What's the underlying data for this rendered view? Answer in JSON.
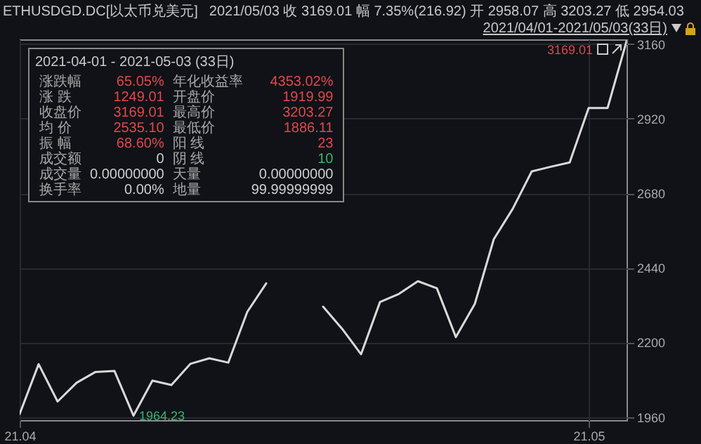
{
  "chart_data": {
    "type": "line",
    "title": "ETHUSDGD.DC[以太币兑美元]",
    "subtitle": "2021/05/03  收 3169.01  幅 7.35%(216.92)  开 2958.07  高 3203.27  低 2954.03",
    "x": [
      "2021-04-01",
      "2021-04-02",
      "2021-04-03",
      "2021-04-04",
      "2021-04-05",
      "2021-04-06",
      "2021-04-07",
      "2021-04-08",
      "2021-04-09",
      "2021-04-10",
      "2021-04-11",
      "2021-04-12",
      "2021-04-13",
      "2021-04-14",
      "2021-04-15",
      "2021-04-16",
      "2021-04-17",
      "2021-04-18",
      "2021-04-19",
      "2021-04-20",
      "2021-04-21",
      "2021-04-22",
      "2021-04-23",
      "2021-04-24",
      "2021-04-25",
      "2021-04-26",
      "2021-04-27",
      "2021-04-28",
      "2021-04-29",
      "2021-04-30",
      "2021-05-01",
      "2021-05-02",
      "2021-05-03"
    ],
    "series": [
      {
        "color": "#d9d9d9",
        "values": [
          1970,
          2130,
          2010,
          2070,
          2105,
          2108,
          1964.23,
          2077,
          2063,
          2131,
          2149,
          2135,
          2298,
          2390,
          null,
          null,
          2315,
          2244,
          2162,
          2330,
          2356,
          2397,
          2374,
          2217,
          2324,
          2532,
          2630,
          2750,
          2765,
          2779,
          2954,
          2954,
          3169.01
        ]
      }
    ],
    "xlim": [
      "2021-04-01",
      "2021-05-03"
    ],
    "xticks": [
      {
        "value": "2021-04-01",
        "label": "21.04"
      },
      {
        "value": "2021-05-01",
        "label": "21.05"
      }
    ],
    "ylim": [
      1950,
      3175
    ],
    "yticks": [
      1960,
      2200,
      2440,
      2680,
      2920,
      3160
    ],
    "grid": true,
    "marker": "none",
    "line_style": "solid",
    "annotations": [
      "2021/04/01-2021/05/03(33日)",
      "2021-04-01 - 2021-05-03 (33日)",
      "涨跌幅",
      "65.05%",
      "年化收益率",
      "4353.02%",
      "涨 跌",
      "1249.01",
      "开盘价",
      "1919.99",
      "收盘价",
      "3169.01",
      "最高价",
      "3203.27",
      "均 价",
      "2535.10",
      "最低价",
      "1886.11",
      "振 幅",
      "68.60%",
      "阳 线",
      "23",
      "成交额",
      "0",
      "阴 线",
      "10",
      "成交量",
      "0.00000000",
      "天量",
      "0.00000000",
      "换手率",
      "0.00%",
      "地量",
      "99.99999999",
      {
        "text": "1964.23",
        "x": "2021-04-07",
        "y": 1964.23
      },
      {
        "text": "3169.01",
        "x": "2021-05-03",
        "y": 3169.01
      }
    ]
  }
}
